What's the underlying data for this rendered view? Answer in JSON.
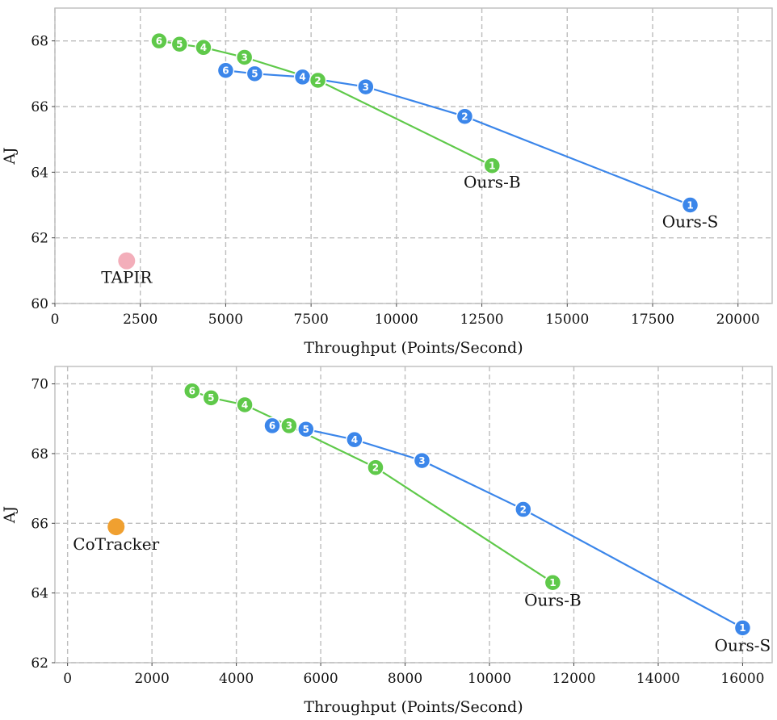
{
  "colors": {
    "ours_s": "#3b86ea",
    "ours_b": "#5fc94a",
    "tapir": "#f3aeba",
    "cotracker": "#f0a030",
    "grid": "#bdbdbd"
  },
  "chart_data": [
    {
      "type": "line",
      "xlabel": "Throughput (Points/Second)",
      "ylabel": "AJ",
      "xlim": [
        0,
        21000
      ],
      "ylim": [
        60,
        69
      ],
      "xticks": [
        0,
        2500,
        5000,
        7500,
        10000,
        12500,
        15000,
        17500,
        20000
      ],
      "xtick_labels": [
        "0",
        "2500",
        "5000",
        "7500",
        "10000",
        "12500",
        "15000",
        "17500",
        "20000"
      ],
      "yticks": [
        60,
        62,
        64,
        66,
        68
      ],
      "ytick_labels": [
        "60",
        "62",
        "64",
        "66",
        "68"
      ],
      "grid": true,
      "series": [
        {
          "name": "Ours-S",
          "color": "#3b86ea",
          "points": [
            {
              "x": 18600,
              "y": 63.0,
              "label": "1"
            },
            {
              "x": 12000,
              "y": 65.7,
              "label": "2"
            },
            {
              "x": 9100,
              "y": 66.6,
              "label": "3"
            },
            {
              "x": 7250,
              "y": 66.9,
              "label": "4"
            },
            {
              "x": 5850,
              "y": 67.0,
              "label": "5"
            },
            {
              "x": 5000,
              "y": 67.1,
              "label": "6"
            }
          ]
        },
        {
          "name": "Ours-B",
          "color": "#5fc94a",
          "points": [
            {
              "x": 12800,
              "y": 64.2,
              "label": "1"
            },
            {
              "x": 7700,
              "y": 66.8,
              "label": "2"
            },
            {
              "x": 5550,
              "y": 67.5,
              "label": "3"
            },
            {
              "x": 4350,
              "y": 67.8,
              "label": "4"
            },
            {
              "x": 3650,
              "y": 67.9,
              "label": "5"
            },
            {
              "x": 3050,
              "y": 68.0,
              "label": "6"
            }
          ]
        },
        {
          "name": "TAPIR",
          "color": "#f3aeba",
          "points": [
            {
              "x": 2100,
              "y": 61.3,
              "label": ""
            }
          ]
        }
      ],
      "annotations": [
        {
          "text": "Ours-B",
          "x": 12800,
          "y": 63.7
        },
        {
          "text": "Ours-S",
          "x": 18600,
          "y": 62.5
        },
        {
          "text": "TAPIR",
          "x": 2100,
          "y": 60.8
        }
      ]
    },
    {
      "type": "line",
      "xlabel": "Throughput (Points/Second)",
      "ylabel": "AJ",
      "xlim": [
        -300,
        16700
      ],
      "ylim": [
        62,
        70.5
      ],
      "xticks": [
        0,
        2000,
        4000,
        6000,
        8000,
        10000,
        12000,
        14000,
        16000
      ],
      "xtick_labels": [
        "0",
        "2000",
        "4000",
        "6000",
        "8000",
        "10000",
        "12000",
        "14000",
        "16000"
      ],
      "yticks": [
        62,
        64,
        66,
        68,
        70
      ],
      "ytick_labels": [
        "62",
        "64",
        "66",
        "68",
        "70"
      ],
      "grid": true,
      "series": [
        {
          "name": "Ours-S",
          "color": "#3b86ea",
          "points": [
            {
              "x": 16000,
              "y": 63.0,
              "label": "1"
            },
            {
              "x": 10800,
              "y": 66.4,
              "label": "2"
            },
            {
              "x": 8400,
              "y": 67.8,
              "label": "3"
            },
            {
              "x": 6800,
              "y": 68.4,
              "label": "4"
            },
            {
              "x": 5650,
              "y": 68.7,
              "label": "5"
            },
            {
              "x": 4850,
              "y": 68.8,
              "label": "6"
            }
          ]
        },
        {
          "name": "Ours-B",
          "color": "#5fc94a",
          "points": [
            {
              "x": 11500,
              "y": 64.3,
              "label": "1"
            },
            {
              "x": 7300,
              "y": 67.6,
              "label": "2"
            },
            {
              "x": 5250,
              "y": 68.8,
              "label": "3"
            },
            {
              "x": 4200,
              "y": 69.4,
              "label": "4"
            },
            {
              "x": 3400,
              "y": 69.6,
              "label": "5"
            },
            {
              "x": 2950,
              "y": 69.8,
              "label": "6"
            }
          ]
        },
        {
          "name": "CoTracker",
          "color": "#f0a030",
          "points": [
            {
              "x": 1150,
              "y": 65.9,
              "label": ""
            }
          ]
        }
      ],
      "annotations": [
        {
          "text": "Ours-B",
          "x": 11500,
          "y": 63.8
        },
        {
          "text": "Ours-S",
          "x": 16000,
          "y": 62.5
        },
        {
          "text": "CoTracker",
          "x": 1150,
          "y": 65.4
        }
      ]
    }
  ]
}
